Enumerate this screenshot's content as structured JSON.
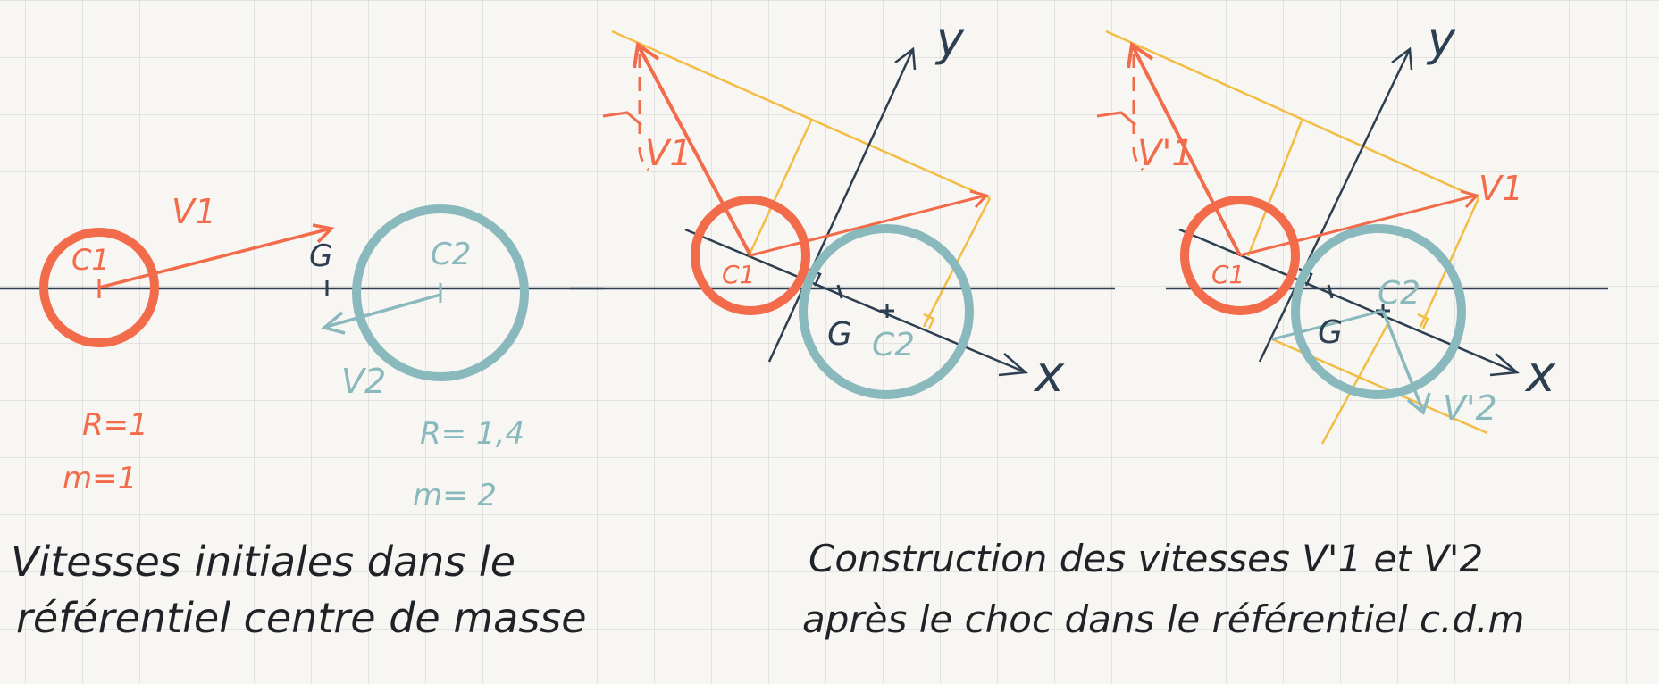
{
  "colors": {
    "paper": "#f7f6f2",
    "grid": "#dcdcda",
    "orange": "#f26b4b",
    "teal": "#8ab9bd",
    "navy": "#2c3e50",
    "yellow": "#f3bd44",
    "ink": "#1f2328"
  },
  "panel1": {
    "label_c1": "C1",
    "label_c2": "C2",
    "label_g": "G",
    "label_v1": "V1",
    "label_v2": "V2",
    "r1": "R=1",
    "m1": "m=1",
    "r2": "R= 1,4",
    "m2": "m= 2"
  },
  "panel2": {
    "label_y": "y",
    "label_x": "x",
    "label_c1": "C1",
    "label_c2": "C2",
    "label_g": "G",
    "label_v1": "V1"
  },
  "panel3": {
    "label_y": "y",
    "label_x": "x",
    "label_c1": "C1",
    "label_c2": "C2",
    "label_g": "G",
    "label_v1": "V1",
    "label_v1p": "V'1",
    "label_v2p": "V'2"
  },
  "captions": {
    "left_line1": "Vitesses initiales dans le",
    "left_line2": "référentiel centre de masse",
    "right_line1": "Construction des vitesses V'1 et V'2",
    "right_line2": "après le choc dans le référentiel c.d.m"
  }
}
